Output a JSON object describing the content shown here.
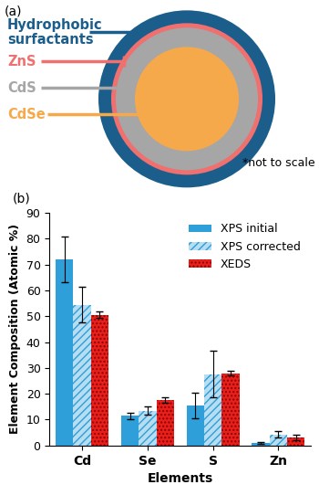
{
  "diagram": {
    "label": "(a)",
    "note": "*not to scale",
    "layers": [
      {
        "label": "Hydrophobic\nsurfactants",
        "color": "#1b5e8c"
      },
      {
        "label": "ZnS",
        "color": "#f07070"
      },
      {
        "label": "CdS",
        "color": "#a6a6a6"
      },
      {
        "label": "CdSe",
        "color": "#f5a94a"
      }
    ]
  },
  "chart_data": {
    "type": "bar",
    "title": "(b)",
    "x_label": "Elements",
    "y_label": "Element Composition (Atomic %)",
    "categories": [
      "Cd",
      "Se",
      "S",
      "Zn"
    ],
    "series": [
      {
        "name": "XPS initial",
        "color": "#2e9fd8",
        "values": [
          72,
          11.5,
          15.5,
          1
        ],
        "errors": [
          9,
          1.2,
          5,
          0.3
        ]
      },
      {
        "name": "XPS corrected",
        "color": "#2e9fd8",
        "values": [
          54.5,
          13.5,
          27.5,
          4.3
        ],
        "errors": [
          7,
          1.5,
          9,
          1.2
        ]
      },
      {
        "name": "XEDS",
        "color": "#e8201c",
        "values": [
          50.5,
          17.5,
          28,
          3.2
        ],
        "errors": [
          1.2,
          1,
          1,
          1
        ]
      }
    ],
    "ylim": [
      0,
      90
    ],
    "yticks": [
      0,
      10,
      20,
      30,
      40,
      50,
      60,
      70,
      80,
      90
    ],
    "legend": "upper right",
    "grid": false
  }
}
